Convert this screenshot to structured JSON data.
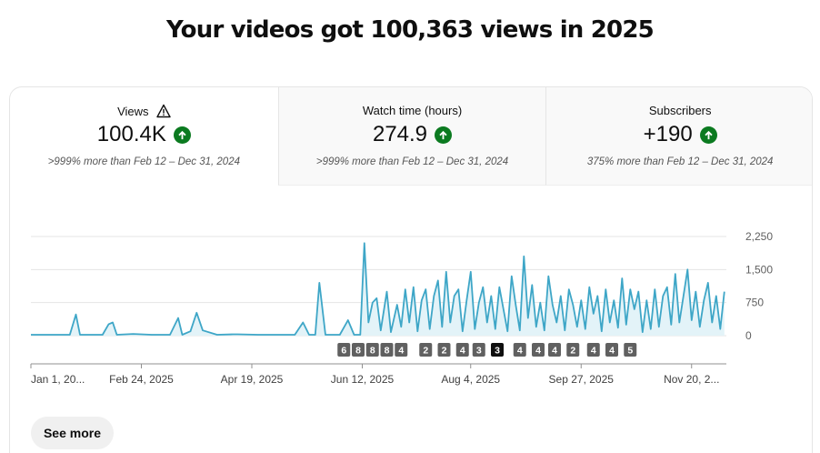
{
  "headline": "Your videos got 100,363 views in 2025",
  "tabs": [
    {
      "title": "Views",
      "value": "100.4K",
      "note": ">999% more than Feb 12 – Dec 31, 2024",
      "warning_icon": "warning-triangle-icon",
      "trend_icon": "arrow-up-icon"
    },
    {
      "title": "Watch time (hours)",
      "value": "274.9",
      "note": ">999% more than Feb 12 – Dec 31, 2024",
      "trend_icon": "arrow-up-icon"
    },
    {
      "title": "Subscribers",
      "value": "+190",
      "note": "375% more than Feb 12 – Dec 31, 2024",
      "trend_icon": "arrow-up-icon"
    }
  ],
  "colors": {
    "line": "#3ea6c7",
    "fill": "#e3f3f8",
    "trend_up": "#0b7a20",
    "grid": "#e5e5e5",
    "marker": "#606060",
    "marker_selected": "#0f0f0f"
  },
  "see_more_label": "See more",
  "chart_data": {
    "type": "line",
    "series_name": "Views",
    "x_start": "2025-01-01",
    "x_end": "2025-12-07",
    "x_ticks": [
      {
        "label": "Jan 1, 20...",
        "date": "2025-01-01"
      },
      {
        "label": "Feb 24, 2025",
        "date": "2025-02-24"
      },
      {
        "label": "Apr 19, 2025",
        "date": "2025-04-19"
      },
      {
        "label": "Jun 12, 2025",
        "date": "2025-06-12"
      },
      {
        "label": "Aug 4, 2025",
        "date": "2025-08-04"
      },
      {
        "label": "Sep 27, 2025",
        "date": "2025-09-27"
      },
      {
        "label": "Nov 20, 2...",
        "date": "2025-11-20"
      }
    ],
    "y_ticks": [
      0,
      750,
      1500,
      2250
    ],
    "y_tick_labels": [
      "0",
      "750",
      "1,500",
      "2,250"
    ],
    "ylim": [
      0,
      2250
    ],
    "grid": true,
    "points": [
      [
        "2025-01-01",
        20
      ],
      [
        "2025-01-20",
        20
      ],
      [
        "2025-01-23",
        480
      ],
      [
        "2025-01-25",
        20
      ],
      [
        "2025-02-05",
        20
      ],
      [
        "2025-02-08",
        260
      ],
      [
        "2025-02-10",
        300
      ],
      [
        "2025-02-12",
        20
      ],
      [
        "2025-02-20",
        40
      ],
      [
        "2025-03-01",
        20
      ],
      [
        "2025-03-10",
        20
      ],
      [
        "2025-03-14",
        400
      ],
      [
        "2025-03-16",
        20
      ],
      [
        "2025-03-20",
        100
      ],
      [
        "2025-03-23",
        520
      ],
      [
        "2025-03-26",
        120
      ],
      [
        "2025-04-02",
        20
      ],
      [
        "2025-04-10",
        30
      ],
      [
        "2025-04-12",
        30
      ],
      [
        "2025-04-22",
        20
      ],
      [
        "2025-04-28",
        20
      ],
      [
        "2025-05-10",
        20
      ],
      [
        "2025-05-14",
        300
      ],
      [
        "2025-05-17",
        20
      ],
      [
        "2025-05-20",
        20
      ],
      [
        "2025-05-22",
        1200
      ],
      [
        "2025-05-25",
        20
      ],
      [
        "2025-06-01",
        20
      ],
      [
        "2025-06-05",
        350
      ],
      [
        "2025-06-08",
        20
      ],
      [
        "2025-06-11",
        20
      ],
      [
        "2025-06-13",
        2100
      ],
      [
        "2025-06-15",
        300
      ],
      [
        "2025-06-17",
        750
      ],
      [
        "2025-06-19",
        850
      ],
      [
        "2025-06-21",
        120
      ],
      [
        "2025-06-24",
        1000
      ],
      [
        "2025-06-26",
        80
      ],
      [
        "2025-06-29",
        700
      ],
      [
        "2025-07-01",
        200
      ],
      [
        "2025-07-03",
        1050
      ],
      [
        "2025-07-05",
        300
      ],
      [
        "2025-07-07",
        1100
      ],
      [
        "2025-07-09",
        100
      ],
      [
        "2025-07-11",
        800
      ],
      [
        "2025-07-13",
        1050
      ],
      [
        "2025-07-15",
        150
      ],
      [
        "2025-07-17",
        900
      ],
      [
        "2025-07-19",
        1250
      ],
      [
        "2025-07-21",
        200
      ],
      [
        "2025-07-23",
        1450
      ],
      [
        "2025-07-25",
        300
      ],
      [
        "2025-07-27",
        900
      ],
      [
        "2025-07-29",
        1050
      ],
      [
        "2025-07-31",
        100
      ],
      [
        "2025-08-02",
        800
      ],
      [
        "2025-08-04",
        1450
      ],
      [
        "2025-08-06",
        150
      ],
      [
        "2025-08-08",
        750
      ],
      [
        "2025-08-10",
        1100
      ],
      [
        "2025-08-12",
        300
      ],
      [
        "2025-08-14",
        900
      ],
      [
        "2025-08-16",
        150
      ],
      [
        "2025-08-18",
        1100
      ],
      [
        "2025-08-20",
        600
      ],
      [
        "2025-08-22",
        100
      ],
      [
        "2025-08-24",
        1350
      ],
      [
        "2025-08-26",
        700
      ],
      [
        "2025-08-28",
        120
      ],
      [
        "2025-08-30",
        1800
      ],
      [
        "2025-09-01",
        400
      ],
      [
        "2025-09-03",
        1150
      ],
      [
        "2025-09-05",
        200
      ],
      [
        "2025-09-07",
        750
      ],
      [
        "2025-09-09",
        120
      ],
      [
        "2025-09-11",
        1350
      ],
      [
        "2025-09-13",
        700
      ],
      [
        "2025-09-15",
        300
      ],
      [
        "2025-09-17",
        900
      ],
      [
        "2025-09-19",
        120
      ],
      [
        "2025-09-21",
        1050
      ],
      [
        "2025-09-23",
        700
      ],
      [
        "2025-09-25",
        200
      ],
      [
        "2025-09-27",
        800
      ],
      [
        "2025-09-29",
        150
      ],
      [
        "2025-10-01",
        1100
      ],
      [
        "2025-10-03",
        500
      ],
      [
        "2025-10-05",
        900
      ],
      [
        "2025-10-07",
        100
      ],
      [
        "2025-10-09",
        1050
      ],
      [
        "2025-10-11",
        300
      ],
      [
        "2025-10-13",
        800
      ],
      [
        "2025-10-15",
        180
      ],
      [
        "2025-10-17",
        1300
      ],
      [
        "2025-10-19",
        250
      ],
      [
        "2025-10-21",
        1050
      ],
      [
        "2025-10-23",
        600
      ],
      [
        "2025-10-25",
        1000
      ],
      [
        "2025-10-27",
        80
      ],
      [
        "2025-10-29",
        800
      ],
      [
        "2025-10-31",
        150
      ],
      [
        "2025-11-02",
        1050
      ],
      [
        "2025-11-04",
        200
      ],
      [
        "2025-11-06",
        900
      ],
      [
        "2025-11-08",
        1100
      ],
      [
        "2025-11-10",
        250
      ],
      [
        "2025-11-12",
        1400
      ],
      [
        "2025-11-14",
        300
      ],
      [
        "2025-11-16",
        900
      ],
      [
        "2025-11-18",
        1500
      ],
      [
        "2025-11-20",
        350
      ],
      [
        "2025-11-22",
        1000
      ],
      [
        "2025-11-24",
        200
      ],
      [
        "2025-11-26",
        800
      ],
      [
        "2025-11-28",
        1200
      ],
      [
        "2025-11-30",
        300
      ],
      [
        "2025-12-02",
        900
      ],
      [
        "2025-12-04",
        150
      ],
      [
        "2025-12-06",
        1000
      ]
    ],
    "markers": [
      {
        "label": "6",
        "date": "2025-06-03",
        "selected": false
      },
      {
        "label": "8",
        "date": "2025-06-10",
        "selected": false
      },
      {
        "label": "8",
        "date": "2025-06-17",
        "selected": false
      },
      {
        "label": "8",
        "date": "2025-06-24",
        "selected": false
      },
      {
        "label": "4",
        "date": "2025-07-01",
        "selected": false
      },
      {
        "label": "2",
        "date": "2025-07-13",
        "selected": false
      },
      {
        "label": "2",
        "date": "2025-07-22",
        "selected": false
      },
      {
        "label": "4",
        "date": "2025-07-31",
        "selected": false
      },
      {
        "label": "3",
        "date": "2025-08-08",
        "selected": false
      },
      {
        "label": "3",
        "date": "2025-08-17",
        "selected": true
      },
      {
        "label": "4",
        "date": "2025-08-28",
        "selected": false
      },
      {
        "label": "4",
        "date": "2025-09-06",
        "selected": false
      },
      {
        "label": "4",
        "date": "2025-09-14",
        "selected": false
      },
      {
        "label": "2",
        "date": "2025-09-23",
        "selected": false
      },
      {
        "label": "4",
        "date": "2025-10-03",
        "selected": false
      },
      {
        "label": "4",
        "date": "2025-10-12",
        "selected": false
      },
      {
        "label": "5",
        "date": "2025-10-21",
        "selected": false
      }
    ]
  }
}
